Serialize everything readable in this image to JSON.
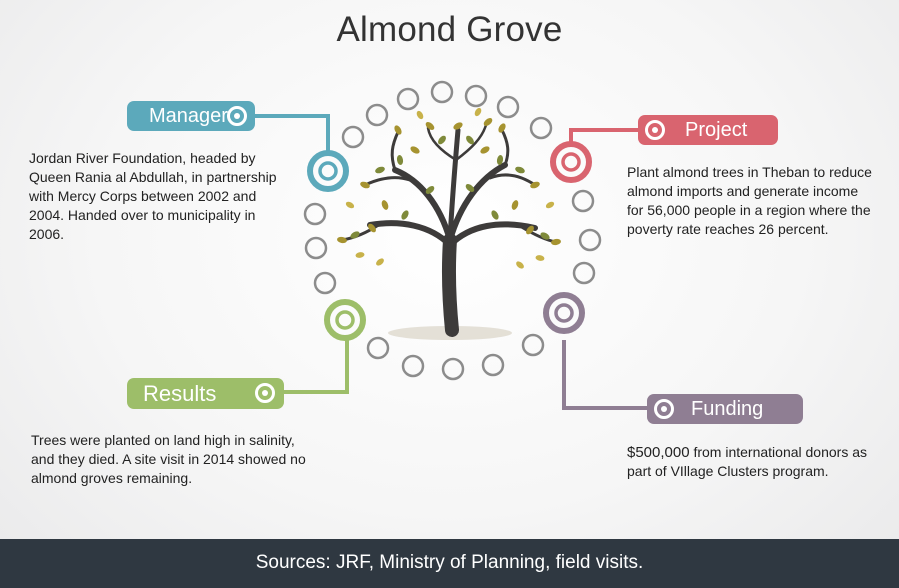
{
  "title": "Almond Grove",
  "sections": {
    "manager": {
      "label": "Manager",
      "text": "Jordan River Foundation, headed by Queen Rania al Abdullah, in partnership with Mercy Corps between 2002 and 2004. Handed over to municipality in 2006.",
      "color": "#5ca9bb"
    },
    "project": {
      "label": "Project",
      "text": "Plant almond trees in Theban to reduce almond imports and generate income for 56,000 people in a region where the poverty rate reaches 26 percent.",
      "color": "#d9646f"
    },
    "results": {
      "label": "Results",
      "text": "Trees were planted on land high in salinity, and they died. A site visit in 2014 showed no almond groves remaining.",
      "color": "#9dbe69"
    },
    "funding": {
      "label": "Funding",
      "amount": "$500,000",
      "text": " from international donors as part of VIllage Clusters program.",
      "color": "#8f7e93"
    }
  },
  "footer": "Sources: JRF, Ministry of Planning, field visits."
}
